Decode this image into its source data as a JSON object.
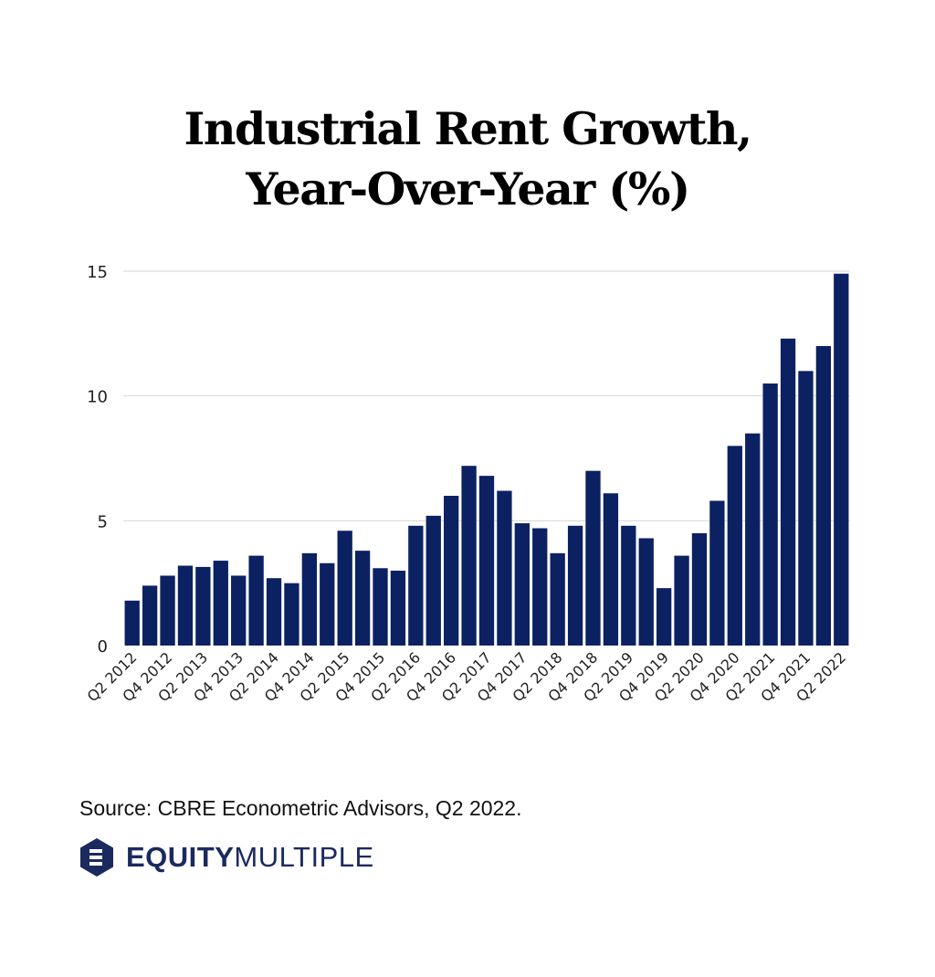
{
  "title_line1": "Industrial Rent Growth,",
  "title_line2": "Year-Over-Year (%)",
  "source": "Source: CBRE Econometric Advisors, Q2 2022.",
  "brand": {
    "strong": "EQUITY",
    "light": "MULTIPLE",
    "color": "#1b2a5e"
  },
  "colors": {
    "bar": "#0c2162",
    "grid": "#d6d6d6",
    "axis_text": "#222222"
  },
  "chart_data": {
    "type": "bar",
    "title": "Industrial Rent Growth, Year-Over-Year (%)",
    "xlabel": "",
    "ylabel": "",
    "ylim": [
      0,
      15
    ],
    "yticks": [
      0,
      5,
      10,
      15
    ],
    "grid": true,
    "categories": [
      "Q2 2012",
      "Q3 2012",
      "Q4 2012",
      "Q1 2013",
      "Q2 2013",
      "Q3 2013",
      "Q4 2013",
      "Q1 2014",
      "Q2 2014",
      "Q3 2014",
      "Q4 2014",
      "Q1 2015",
      "Q2 2015",
      "Q3 2015",
      "Q4 2015",
      "Q1 2016",
      "Q2 2016",
      "Q3 2016",
      "Q4 2016",
      "Q1 2017",
      "Q2 2017",
      "Q3 2017",
      "Q4 2017",
      "Q1 2018",
      "Q2 2018",
      "Q3 2018",
      "Q4 2018",
      "Q1 2019",
      "Q2 2019",
      "Q3 2019",
      "Q4 2019",
      "Q1 2020",
      "Q2 2020",
      "Q3 2020",
      "Q4 2020",
      "Q1 2021",
      "Q2 2021",
      "Q3 2021",
      "Q4 2021",
      "Q1 2022",
      "Q2 2022"
    ],
    "tick_labels_shown": [
      "Q2 2012",
      "Q4 2012",
      "Q2 2013",
      "Q4 2013",
      "Q2 2014",
      "Q4 2014",
      "Q2 2015",
      "Q4 2015",
      "Q2 2016",
      "Q4 2016",
      "Q2 2017",
      "Q4 2017",
      "Q2 2018",
      "Q4 2018",
      "Q2 2019",
      "Q4 2019",
      "Q2 2020",
      "Q4 2020",
      "Q2 2021",
      "Q4 2021",
      "Q2 2022"
    ],
    "series": [
      {
        "name": "Industrial Rent Growth YoY (%)",
        "values": [
          1.8,
          2.4,
          2.8,
          3.2,
          3.15,
          3.4,
          2.8,
          3.6,
          2.7,
          2.5,
          3.7,
          3.3,
          4.6,
          3.8,
          3.1,
          3.0,
          4.8,
          5.2,
          6.0,
          7.2,
          6.8,
          6.2,
          4.9,
          4.7,
          3.7,
          4.8,
          7.0,
          6.1,
          4.8,
          4.3,
          2.3,
          3.6,
          4.5,
          5.8,
          8.0,
          8.5,
          10.5,
          12.3,
          11.0,
          12.0,
          14.9
        ]
      }
    ]
  }
}
